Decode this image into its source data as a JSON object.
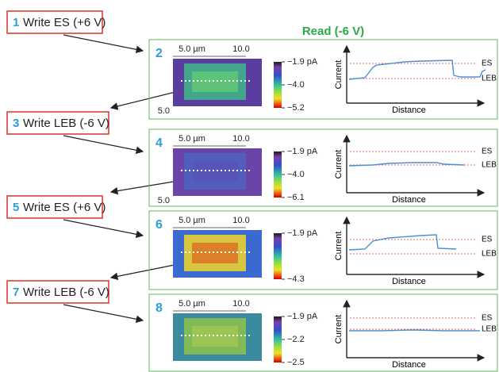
{
  "header": {
    "title": "Read (-6 V)"
  },
  "steps": [
    {
      "number": "1",
      "label": "Write ES (+6 V)"
    },
    {
      "number": "3",
      "label": "Write LEB (-6 V)"
    },
    {
      "number": "5",
      "label": "Write ES (+6 V)"
    },
    {
      "number": "7",
      "label": "Write LEB (-6 V)"
    }
  ],
  "panels": [
    {
      "number": "2",
      "scale_labels": [
        "5.0 µm",
        "10.0",
        "5.0"
      ],
      "colorbar_labels": [
        "−1.9 pA",
        "−4.0",
        "−5.2"
      ],
      "y_label": "Current",
      "x_label": "Distance",
      "es_label": "ES",
      "leb_label": "LEB"
    },
    {
      "number": "4",
      "scale_labels": [
        "5.0 µm",
        "10.0",
        "5.0"
      ],
      "colorbar_labels": [
        "−1.9 pA",
        "−4.0",
        "−6.1"
      ],
      "y_label": "Current",
      "x_label": "Distance",
      "es_label": "ES",
      "leb_label": "LEB"
    },
    {
      "number": "6",
      "scale_labels": [
        "5.0 µm",
        "10.0"
      ],
      "colorbar_labels": [
        "−1.9 pA",
        "−4.3"
      ],
      "y_label": "Current",
      "x_label": "Distance",
      "es_label": "ES",
      "leb_label": "LEB"
    },
    {
      "number": "8",
      "scale_labels": [
        "5.0 µm",
        "10.0"
      ],
      "colorbar_labels": [
        "−1.9 pA",
        "−2.2",
        "−2.5"
      ],
      "y_label": "Current",
      "x_label": "Distance",
      "es_label": "ES",
      "leb_label": "LEB"
    }
  ]
}
